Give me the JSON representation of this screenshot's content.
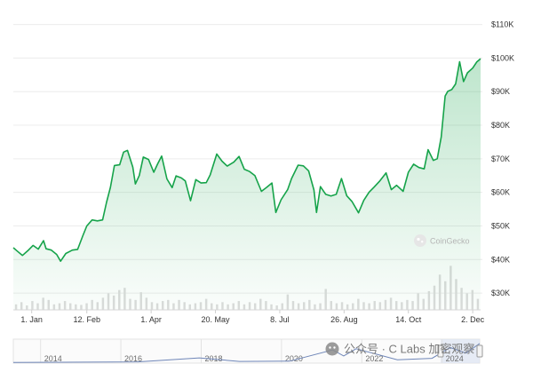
{
  "chart_data": {
    "type": "area",
    "title": "",
    "xlabel": "",
    "ylabel": "",
    "y_ticks": [
      "$30K",
      "$40K",
      "$50K",
      "$60K",
      "$70K",
      "$80K",
      "$90K",
      "$100K",
      "$110K"
    ],
    "y_tick_values": [
      30000,
      40000,
      50000,
      60000,
      70000,
      80000,
      90000,
      100000,
      110000
    ],
    "ylim": [
      25000,
      112000
    ],
    "x_range": [
      "2023-12-18",
      "2024-12-08"
    ],
    "x_ticks": [
      {
        "label": "1. Jan",
        "date": "2024-01-01"
      },
      {
        "label": "12. Feb",
        "date": "2024-02-12"
      },
      {
        "label": "1. Apr",
        "date": "2024-04-01"
      },
      {
        "label": "20. May",
        "date": "2024-05-20"
      },
      {
        "label": "8. Jul",
        "date": "2024-07-08"
      },
      {
        "label": "26. Aug",
        "date": "2024-08-26"
      },
      {
        "label": "14. Oct",
        "date": "2024-10-14"
      },
      {
        "label": "2. Dec",
        "date": "2024-12-02"
      }
    ],
    "series": [
      {
        "color": "#16a34a",
        "points": [
          [
            "2023-12-18",
            43500
          ],
          [
            "2023-12-21",
            42500
          ],
          [
            "2023-12-25",
            41200
          ],
          [
            "2023-12-29",
            42600
          ],
          [
            "2024-01-02",
            44200
          ],
          [
            "2024-01-06",
            43100
          ],
          [
            "2024-01-10",
            45600
          ],
          [
            "2024-01-12",
            43200
          ],
          [
            "2024-01-16",
            42800
          ],
          [
            "2024-01-20",
            41500
          ],
          [
            "2024-01-23",
            39500
          ],
          [
            "2024-01-27",
            41800
          ],
          [
            "2024-02-01",
            42800
          ],
          [
            "2024-02-05",
            43000
          ],
          [
            "2024-02-09",
            47100
          ],
          [
            "2024-02-12",
            50000
          ],
          [
            "2024-02-16",
            51800
          ],
          [
            "2024-02-20",
            51500
          ],
          [
            "2024-02-24",
            51800
          ],
          [
            "2024-02-27",
            57000
          ],
          [
            "2024-03-01",
            61500
          ],
          [
            "2024-03-04",
            68000
          ],
          [
            "2024-03-08",
            68200
          ],
          [
            "2024-03-11",
            72000
          ],
          [
            "2024-03-14",
            72500
          ],
          [
            "2024-03-18",
            67500
          ],
          [
            "2024-03-20",
            62500
          ],
          [
            "2024-03-23",
            65000
          ],
          [
            "2024-03-26",
            70500
          ],
          [
            "2024-03-30",
            69800
          ],
          [
            "2024-04-03",
            66000
          ],
          [
            "2024-04-06",
            68500
          ],
          [
            "2024-04-09",
            70800
          ],
          [
            "2024-04-13",
            64000
          ],
          [
            "2024-04-17",
            61400
          ],
          [
            "2024-04-20",
            64900
          ],
          [
            "2024-04-24",
            64300
          ],
          [
            "2024-04-27",
            63400
          ],
          [
            "2024-05-01",
            57500
          ],
          [
            "2024-05-05",
            63800
          ],
          [
            "2024-05-09",
            62800
          ],
          [
            "2024-05-13",
            62900
          ],
          [
            "2024-05-16",
            65200
          ],
          [
            "2024-05-21",
            71400
          ],
          [
            "2024-05-25",
            69300
          ],
          [
            "2024-05-29",
            67800
          ],
          [
            "2024-06-03",
            69000
          ],
          [
            "2024-06-07",
            70700
          ],
          [
            "2024-06-11",
            66900
          ],
          [
            "2024-06-15",
            66200
          ],
          [
            "2024-06-19",
            65000
          ],
          [
            "2024-06-24",
            60300
          ],
          [
            "2024-06-28",
            61500
          ],
          [
            "2024-07-02",
            62800
          ],
          [
            "2024-07-05",
            54000
          ],
          [
            "2024-07-09",
            57800
          ],
          [
            "2024-07-14",
            60800
          ],
          [
            "2024-07-17",
            64100
          ],
          [
            "2024-07-22",
            68100
          ],
          [
            "2024-07-26",
            67900
          ],
          [
            "2024-07-30",
            66400
          ],
          [
            "2024-08-03",
            60700
          ],
          [
            "2024-08-05",
            54000
          ],
          [
            "2024-08-08",
            61700
          ],
          [
            "2024-08-12",
            59400
          ],
          [
            "2024-08-16",
            58900
          ],
          [
            "2024-08-20",
            59400
          ],
          [
            "2024-08-24",
            64100
          ],
          [
            "2024-08-28",
            59000
          ],
          [
            "2024-09-01",
            57300
          ],
          [
            "2024-09-06",
            53900
          ],
          [
            "2024-09-10",
            57600
          ],
          [
            "2024-09-14",
            60000
          ],
          [
            "2024-09-18",
            61600
          ],
          [
            "2024-09-22",
            63300
          ],
          [
            "2024-09-27",
            65800
          ],
          [
            "2024-10-01",
            60800
          ],
          [
            "2024-10-05",
            62100
          ],
          [
            "2024-10-10",
            60300
          ],
          [
            "2024-10-14",
            66000
          ],
          [
            "2024-10-18",
            68400
          ],
          [
            "2024-10-22",
            67400
          ],
          [
            "2024-10-26",
            67000
          ],
          [
            "2024-10-29",
            72700
          ],
          [
            "2024-11-02",
            69500
          ],
          [
            "2024-11-05",
            70000
          ],
          [
            "2024-11-08",
            76500
          ],
          [
            "2024-11-11",
            88700
          ],
          [
            "2024-11-13",
            90100
          ],
          [
            "2024-11-16",
            90600
          ],
          [
            "2024-11-19",
            92300
          ],
          [
            "2024-11-22",
            98900
          ],
          [
            "2024-11-25",
            93000
          ],
          [
            "2024-11-28",
            95600
          ],
          [
            "2024-12-02",
            97000
          ],
          [
            "2024-12-05",
            98800
          ],
          [
            "2024-12-08",
            99800
          ]
        ]
      }
    ],
    "volume": [
      0.1,
      0.14,
      0.08,
      0.16,
      0.12,
      0.22,
      0.18,
      0.1,
      0.12,
      0.16,
      0.12,
      0.1,
      0.09,
      0.12,
      0.18,
      0.14,
      0.22,
      0.3,
      0.26,
      0.36,
      0.4,
      0.2,
      0.18,
      0.32,
      0.22,
      0.14,
      0.12,
      0.16,
      0.18,
      0.12,
      0.18,
      0.14,
      0.1,
      0.12,
      0.14,
      0.2,
      0.12,
      0.1,
      0.14,
      0.1,
      0.12,
      0.16,
      0.1,
      0.14,
      0.12,
      0.2,
      0.16,
      0.1,
      0.08,
      0.12,
      0.28,
      0.16,
      0.12,
      0.14,
      0.18,
      0.1,
      0.12,
      0.38,
      0.16,
      0.12,
      0.14,
      0.1,
      0.12,
      0.2,
      0.14,
      0.12,
      0.16,
      0.14,
      0.18,
      0.22,
      0.16,
      0.14,
      0.18,
      0.16,
      0.3,
      0.2,
      0.34,
      0.44,
      0.64,
      0.52,
      0.8,
      0.56,
      0.4,
      0.3,
      0.36,
      0.2
    ],
    "navigator": {
      "ticks": [
        {
          "label": "2014",
          "date": "2014-01-01"
        },
        {
          "label": "2016",
          "date": "2016-01-01"
        },
        {
          "label": "2018",
          "date": "2018-01-01"
        },
        {
          "label": "2020",
          "date": "2020-01-01"
        },
        {
          "label": "2022",
          "date": "2022-01-01"
        },
        {
          "label": "2024",
          "date": "2024-01-01"
        }
      ],
      "x_range": [
        "2013-04-28",
        "2024-12-08"
      ],
      "selected": [
        "2023-12-18",
        "2024-12-08"
      ]
    }
  },
  "watermark": "CoinGecko",
  "caption": "公众号 · C Labs 加密观察"
}
